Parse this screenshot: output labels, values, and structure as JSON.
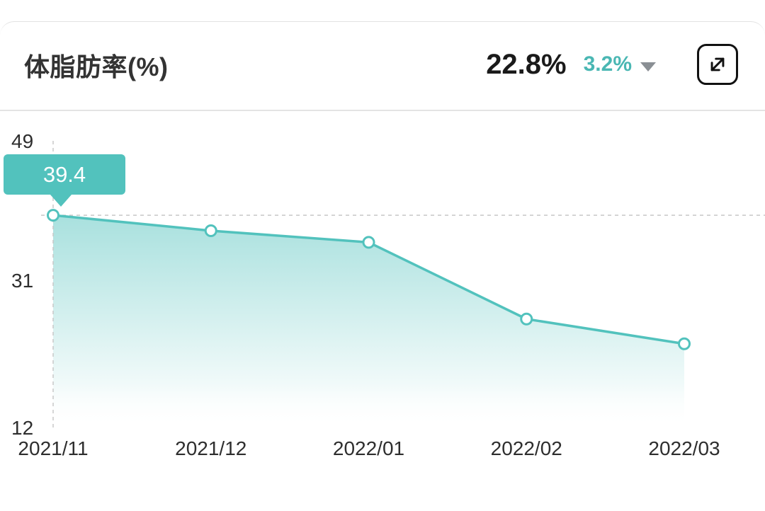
{
  "header": {
    "title": "体脂肪率(%)",
    "current_value": "22.8%",
    "delta_value": "3.2%"
  },
  "chart_data": {
    "type": "area",
    "title": "体脂肪率(%)",
    "x_labels": [
      "2021/11",
      "2021/12",
      "2022/01",
      "2022/02",
      "2022/03"
    ],
    "values": [
      39.4,
      37.4,
      35.9,
      26.0,
      22.8
    ],
    "ylim": [
      12,
      49
    ],
    "y_ticks": [
      49,
      31,
      12
    ],
    "legend": "none",
    "grid": "dashed reference lines through first data point (horizontal and vertical)",
    "line_color": "#52c2bd",
    "fill": "vertical gradient from teal to transparent white",
    "annotation": {
      "label": "39.4",
      "target_index": 0
    }
  },
  "colors": {
    "accent": "#52c2bd",
    "delta_text": "#4ab7b3",
    "axis_text": "#2e2e2e",
    "divider": "#e4e4e4"
  }
}
